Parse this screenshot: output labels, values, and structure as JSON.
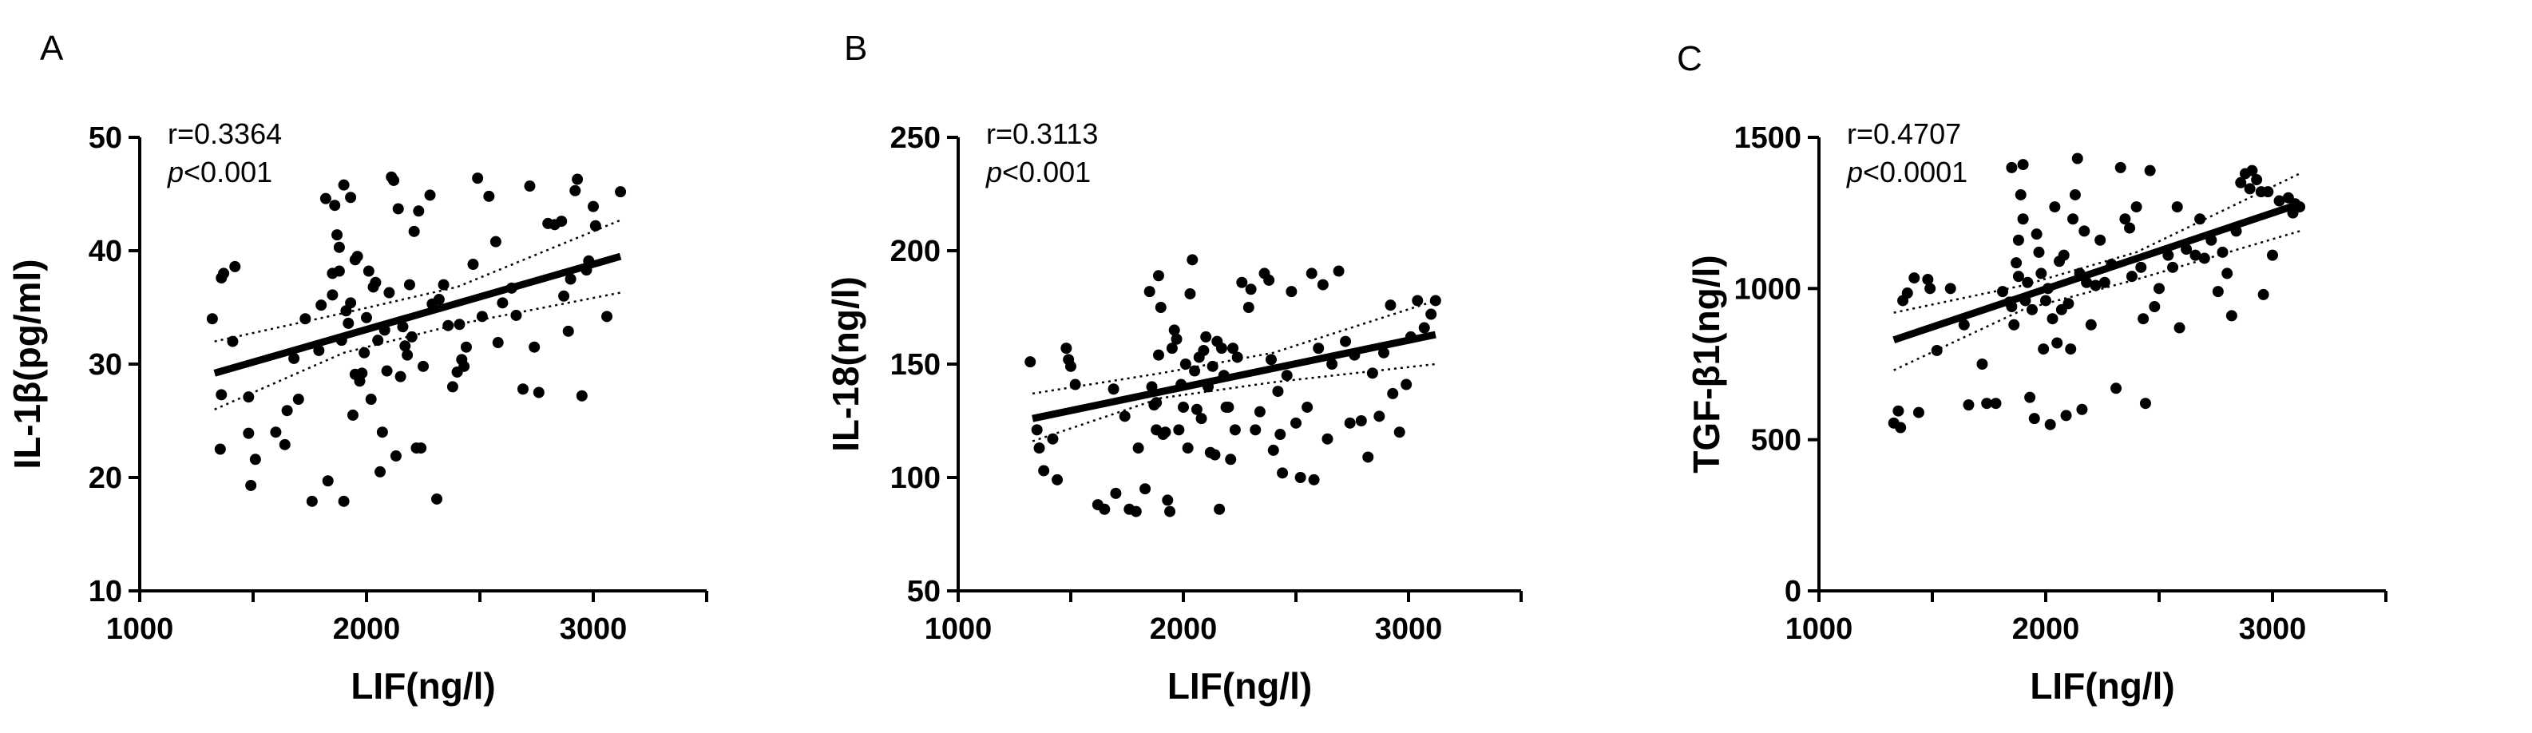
{
  "chart_data": [
    {
      "type": "scatter",
      "panel_label": "A",
      "xlabel": "LIF(ng/l)",
      "ylabel": "IL-1β(pg/ml)",
      "xlim": [
        1000,
        3500
      ],
      "ylim": [
        10,
        50
      ],
      "xticks": [
        1000,
        2000,
        3000
      ],
      "yticks": [
        10,
        20,
        30,
        40,
        50
      ],
      "stats": {
        "r": "r=0.3364",
        "p_symbol": "p",
        "p_rest": "<0.001"
      },
      "regression": {
        "x": [
          1330,
          3120
        ],
        "y": [
          29.2,
          39.5
        ]
      },
      "ci_lower": {
        "x": [
          1330,
          1900,
          2400,
          3120
        ],
        "y": [
          26.0,
          31.0,
          33.5,
          36.3
        ]
      },
      "ci_upper": {
        "x": [
          1330,
          1900,
          2400,
          3120
        ],
        "y": [
          32.0,
          34.5,
          36.8,
          42.7
        ]
      },
      "points": [
        [
          1320,
          34.0
        ],
        [
          1360,
          37.6
        ],
        [
          1370,
          38.0
        ],
        [
          1355,
          22.5
        ],
        [
          1360,
          27.3
        ],
        [
          1410,
          32.0
        ],
        [
          1420,
          38.6
        ],
        [
          1480,
          27.1
        ],
        [
          1480,
          23.9
        ],
        [
          1490,
          19.3
        ],
        [
          1510,
          21.6
        ],
        [
          1600,
          24.0
        ],
        [
          1640,
          22.9
        ],
        [
          1650,
          25.9
        ],
        [
          1680,
          30.5
        ],
        [
          1700,
          26.9
        ],
        [
          1730,
          34.0
        ],
        [
          1760,
          17.9
        ],
        [
          1790,
          31.2
        ],
        [
          1800,
          35.2
        ],
        [
          1820,
          44.6
        ],
        [
          1830,
          19.7
        ],
        [
          1850,
          36.1
        ],
        [
          1850,
          38.0
        ],
        [
          1860,
          44.0
        ],
        [
          1870,
          41.4
        ],
        [
          1880,
          38.2
        ],
        [
          1880,
          40.3
        ],
        [
          1890,
          32.1
        ],
        [
          1900,
          17.9
        ],
        [
          1900,
          45.8
        ],
        [
          1910,
          34.7
        ],
        [
          1920,
          33.6
        ],
        [
          1930,
          35.4
        ],
        [
          1930,
          44.7
        ],
        [
          1940,
          25.5
        ],
        [
          1950,
          39.2
        ],
        [
          1950,
          29.1
        ],
        [
          1960,
          39.5
        ],
        [
          1970,
          28.5
        ],
        [
          1980,
          29.2
        ],
        [
          1990,
          31.0
        ],
        [
          2000,
          34.1
        ],
        [
          2010,
          38.2
        ],
        [
          2020,
          26.9
        ],
        [
          2030,
          36.8
        ],
        [
          2040,
          37.2
        ],
        [
          2050,
          32.1
        ],
        [
          2060,
          20.5
        ],
        [
          2070,
          24.0
        ],
        [
          2080,
          33.0
        ],
        [
          2090,
          29.4
        ],
        [
          2100,
          36.3
        ],
        [
          2110,
          46.5
        ],
        [
          2120,
          46.2
        ],
        [
          2130,
          21.9
        ],
        [
          2140,
          43.7
        ],
        [
          2150,
          28.9
        ],
        [
          2160,
          33.3
        ],
        [
          2170,
          31.6
        ],
        [
          2180,
          30.8
        ],
        [
          2190,
          37.0
        ],
        [
          2200,
          32.4
        ],
        [
          2210,
          41.7
        ],
        [
          2220,
          22.6
        ],
        [
          2230,
          43.5
        ],
        [
          2240,
          22.6
        ],
        [
          2250,
          29.8
        ],
        [
          2280,
          44.9
        ],
        [
          2290,
          35.3
        ],
        [
          2310,
          18.1
        ],
        [
          2320,
          35.7
        ],
        [
          2340,
          37.0
        ],
        [
          2360,
          33.4
        ],
        [
          2380,
          28.0
        ],
        [
          2400,
          29.3
        ],
        [
          2410,
          33.5
        ],
        [
          2420,
          30.4
        ],
        [
          2430,
          29.8
        ],
        [
          2440,
          31.5
        ],
        [
          2470,
          38.8
        ],
        [
          2490,
          46.4
        ],
        [
          2510,
          34.2
        ],
        [
          2540,
          44.8
        ],
        [
          2570,
          40.8
        ],
        [
          2580,
          31.9
        ],
        [
          2600,
          35.4
        ],
        [
          2640,
          36.7
        ],
        [
          2660,
          34.3
        ],
        [
          2690,
          27.8
        ],
        [
          2720,
          45.7
        ],
        [
          2740,
          31.5
        ],
        [
          2760,
          27.5
        ],
        [
          2800,
          42.4
        ],
        [
          2830,
          42.3
        ],
        [
          2860,
          42.6
        ],
        [
          2870,
          36.0
        ],
        [
          2890,
          32.9
        ],
        [
          2900,
          37.5
        ],
        [
          2920,
          45.3
        ],
        [
          2930,
          46.3
        ],
        [
          2950,
          27.2
        ],
        [
          2970,
          38.3
        ],
        [
          2980,
          39.1
        ],
        [
          3000,
          43.9
        ],
        [
          3010,
          42.2
        ],
        [
          3060,
          34.2
        ],
        [
          3120,
          45.2
        ]
      ]
    },
    {
      "type": "scatter",
      "panel_label": "B",
      "xlabel": "LIF(ng/l)",
      "ylabel": "IL-18(ng/l)",
      "xlim": [
        1000,
        3500
      ],
      "ylim": [
        50,
        250
      ],
      "xticks": [
        1000,
        2000,
        3000
      ],
      "yticks": [
        50,
        100,
        150,
        200,
        250
      ],
      "stats": {
        "r": "r=0.3113",
        "p_symbol": "p",
        "p_rest": "<0.001"
      },
      "regression": {
        "x": [
          1330,
          3120
        ],
        "y": [
          126,
          163
        ]
      },
      "ci_lower": {
        "x": [
          1330,
          1900,
          2400,
          3120
        ],
        "y": [
          116,
          135,
          142,
          150
        ]
      },
      "ci_upper": {
        "x": [
          1330,
          1900,
          2400,
          3120
        ],
        "y": [
          137,
          146,
          155,
          178
        ]
      },
      "points": [
        [
          1320,
          151
        ],
        [
          1350,
          121
        ],
        [
          1360,
          113
        ],
        [
          1380,
          103
        ],
        [
          1420,
          117
        ],
        [
          1440,
          99
        ],
        [
          1480,
          157
        ],
        [
          1490,
          152
        ],
        [
          1500,
          149
        ],
        [
          1520,
          141
        ],
        [
          1620,
          88
        ],
        [
          1650,
          86
        ],
        [
          1690,
          139
        ],
        [
          1700,
          93
        ],
        [
          1740,
          127
        ],
        [
          1760,
          86
        ],
        [
          1790,
          85
        ],
        [
          1800,
          113
        ],
        [
          1830,
          95
        ],
        [
          1850,
          182
        ],
        [
          1860,
          140
        ],
        [
          1870,
          132
        ],
        [
          1880,
          133
        ],
        [
          1880,
          121
        ],
        [
          1890,
          154
        ],
        [
          1890,
          189
        ],
        [
          1900,
          175
        ],
        [
          1910,
          119
        ],
        [
          1920,
          120
        ],
        [
          1930,
          90
        ],
        [
          1940,
          85
        ],
        [
          1950,
          157
        ],
        [
          1960,
          165
        ],
        [
          1970,
          161
        ],
        [
          1980,
          121
        ],
        [
          1990,
          141
        ],
        [
          2000,
          131
        ],
        [
          2010,
          150
        ],
        [
          2020,
          113
        ],
        [
          2030,
          181
        ],
        [
          2040,
          196
        ],
        [
          2050,
          147
        ],
        [
          2060,
          130
        ],
        [
          2070,
          153
        ],
        [
          2080,
          126
        ],
        [
          2090,
          156
        ],
        [
          2100,
          162
        ],
        [
          2110,
          140
        ],
        [
          2120,
          111
        ],
        [
          2130,
          149
        ],
        [
          2140,
          110
        ],
        [
          2150,
          160
        ],
        [
          2160,
          86
        ],
        [
          2170,
          157
        ],
        [
          2180,
          145
        ],
        [
          2190,
          131
        ],
        [
          2200,
          131
        ],
        [
          2210,
          108
        ],
        [
          2220,
          157
        ],
        [
          2230,
          121
        ],
        [
          2240,
          153
        ],
        [
          2260,
          186
        ],
        [
          2290,
          175
        ],
        [
          2300,
          183
        ],
        [
          2320,
          121
        ],
        [
          2340,
          129
        ],
        [
          2360,
          190
        ],
        [
          2380,
          187
        ],
        [
          2390,
          152
        ],
        [
          2400,
          112
        ],
        [
          2420,
          138
        ],
        [
          2430,
          119
        ],
        [
          2440,
          102
        ],
        [
          2460,
          145
        ],
        [
          2480,
          182
        ],
        [
          2500,
          124
        ],
        [
          2520,
          100
        ],
        [
          2550,
          131
        ],
        [
          2570,
          190
        ],
        [
          2580,
          99
        ],
        [
          2600,
          157
        ],
        [
          2620,
          185
        ],
        [
          2640,
          117
        ],
        [
          2660,
          150
        ],
        [
          2690,
          191
        ],
        [
          2720,
          160
        ],
        [
          2740,
          124
        ],
        [
          2760,
          154
        ],
        [
          2790,
          125
        ],
        [
          2820,
          109
        ],
        [
          2840,
          146
        ],
        [
          2870,
          127
        ],
        [
          2890,
          155
        ],
        [
          2920,
          176
        ],
        [
          2930,
          137
        ],
        [
          2960,
          120
        ],
        [
          2990,
          141
        ],
        [
          3010,
          162
        ],
        [
          3040,
          178
        ],
        [
          3070,
          166
        ],
        [
          3100,
          172
        ],
        [
          3120,
          178
        ]
      ]
    },
    {
      "type": "scatter",
      "panel_label": "C",
      "xlabel": "LIF(ng/l)",
      "ylabel": "TGF-β1(ng/l)",
      "xlim": [
        1000,
        3500
      ],
      "ylim": [
        0,
        1500
      ],
      "xticks": [
        1000,
        2000,
        3000
      ],
      "yticks": [
        0,
        500,
        1000,
        1500
      ],
      "stats": {
        "r": "r=0.4707",
        "p_symbol": "p",
        "p_rest": "<0.0001"
      },
      "regression": {
        "x": [
          1330,
          3120
        ],
        "y": [
          830,
          1280
        ]
      },
      "ci_lower": {
        "x": [
          1330,
          1900,
          2400,
          3120
        ],
        "y": [
          730,
          930,
          1030,
          1190
        ]
      },
      "ci_upper": {
        "x": [
          1330,
          1900,
          2400,
          3120
        ],
        "y": [
          920,
          1010,
          1120,
          1380
        ]
      },
      "points": [
        [
          1330,
          555
        ],
        [
          1350,
          595
        ],
        [
          1360,
          540
        ],
        [
          1370,
          960
        ],
        [
          1390,
          985
        ],
        [
          1420,
          1035
        ],
        [
          1440,
          590
        ],
        [
          1480,
          1030
        ],
        [
          1490,
          1000
        ],
        [
          1520,
          795
        ],
        [
          1580,
          1000
        ],
        [
          1640,
          880
        ],
        [
          1660,
          615
        ],
        [
          1720,
          750
        ],
        [
          1740,
          620
        ],
        [
          1780,
          620
        ],
        [
          1810,
          990
        ],
        [
          1840,
          955
        ],
        [
          1850,
          940
        ],
        [
          1850,
          1400
        ],
        [
          1860,
          880
        ],
        [
          1870,
          1085
        ],
        [
          1880,
          1040
        ],
        [
          1880,
          1160
        ],
        [
          1890,
          1310
        ],
        [
          1900,
          1230
        ],
        [
          1900,
          1410
        ],
        [
          1910,
          960
        ],
        [
          1920,
          1020
        ],
        [
          1930,
          640
        ],
        [
          1940,
          930
        ],
        [
          1950,
          570
        ],
        [
          1960,
          1180
        ],
        [
          1970,
          1120
        ],
        [
          1980,
          1050
        ],
        [
          1990,
          800
        ],
        [
          2000,
          960
        ],
        [
          2010,
          1000
        ],
        [
          2020,
          550
        ],
        [
          2030,
          900
        ],
        [
          2040,
          1270
        ],
        [
          2050,
          820
        ],
        [
          2060,
          1090
        ],
        [
          2070,
          930
        ],
        [
          2080,
          1110
        ],
        [
          2090,
          580
        ],
        [
          2100,
          950
        ],
        [
          2110,
          800
        ],
        [
          2120,
          1230
        ],
        [
          2130,
          1310
        ],
        [
          2140,
          1430
        ],
        [
          2150,
          1050
        ],
        [
          2160,
          600
        ],
        [
          2170,
          1190
        ],
        [
          2180,
          1020
        ],
        [
          2200,
          880
        ],
        [
          2220,
          1010
        ],
        [
          2240,
          1160
        ],
        [
          2260,
          1020
        ],
        [
          2290,
          1080
        ],
        [
          2310,
          670
        ],
        [
          2330,
          1400
        ],
        [
          2350,
          1230
        ],
        [
          2370,
          1200
        ],
        [
          2380,
          1040
        ],
        [
          2400,
          1270
        ],
        [
          2420,
          1070
        ],
        [
          2430,
          900
        ],
        [
          2440,
          620
        ],
        [
          2460,
          1390
        ],
        [
          2480,
          940
        ],
        [
          2500,
          1000
        ],
        [
          2540,
          1110
        ],
        [
          2560,
          1070
        ],
        [
          2580,
          1270
        ],
        [
          2590,
          870
        ],
        [
          2620,
          1130
        ],
        [
          2660,
          1110
        ],
        [
          2680,
          1230
        ],
        [
          2700,
          1100
        ],
        [
          2730,
          1160
        ],
        [
          2760,
          990
        ],
        [
          2780,
          1120
        ],
        [
          2800,
          1050
        ],
        [
          2820,
          910
        ],
        [
          2840,
          1190
        ],
        [
          2860,
          1350
        ],
        [
          2880,
          1380
        ],
        [
          2900,
          1330
        ],
        [
          2910,
          1390
        ],
        [
          2930,
          1360
        ],
        [
          2950,
          1320
        ],
        [
          2960,
          980
        ],
        [
          2980,
          1320
        ],
        [
          3000,
          1110
        ],
        [
          3030,
          1290
        ],
        [
          3070,
          1300
        ],
        [
          3100,
          1280
        ],
        [
          3120,
          1270
        ],
        [
          3090,
          1250
        ]
      ]
    }
  ]
}
